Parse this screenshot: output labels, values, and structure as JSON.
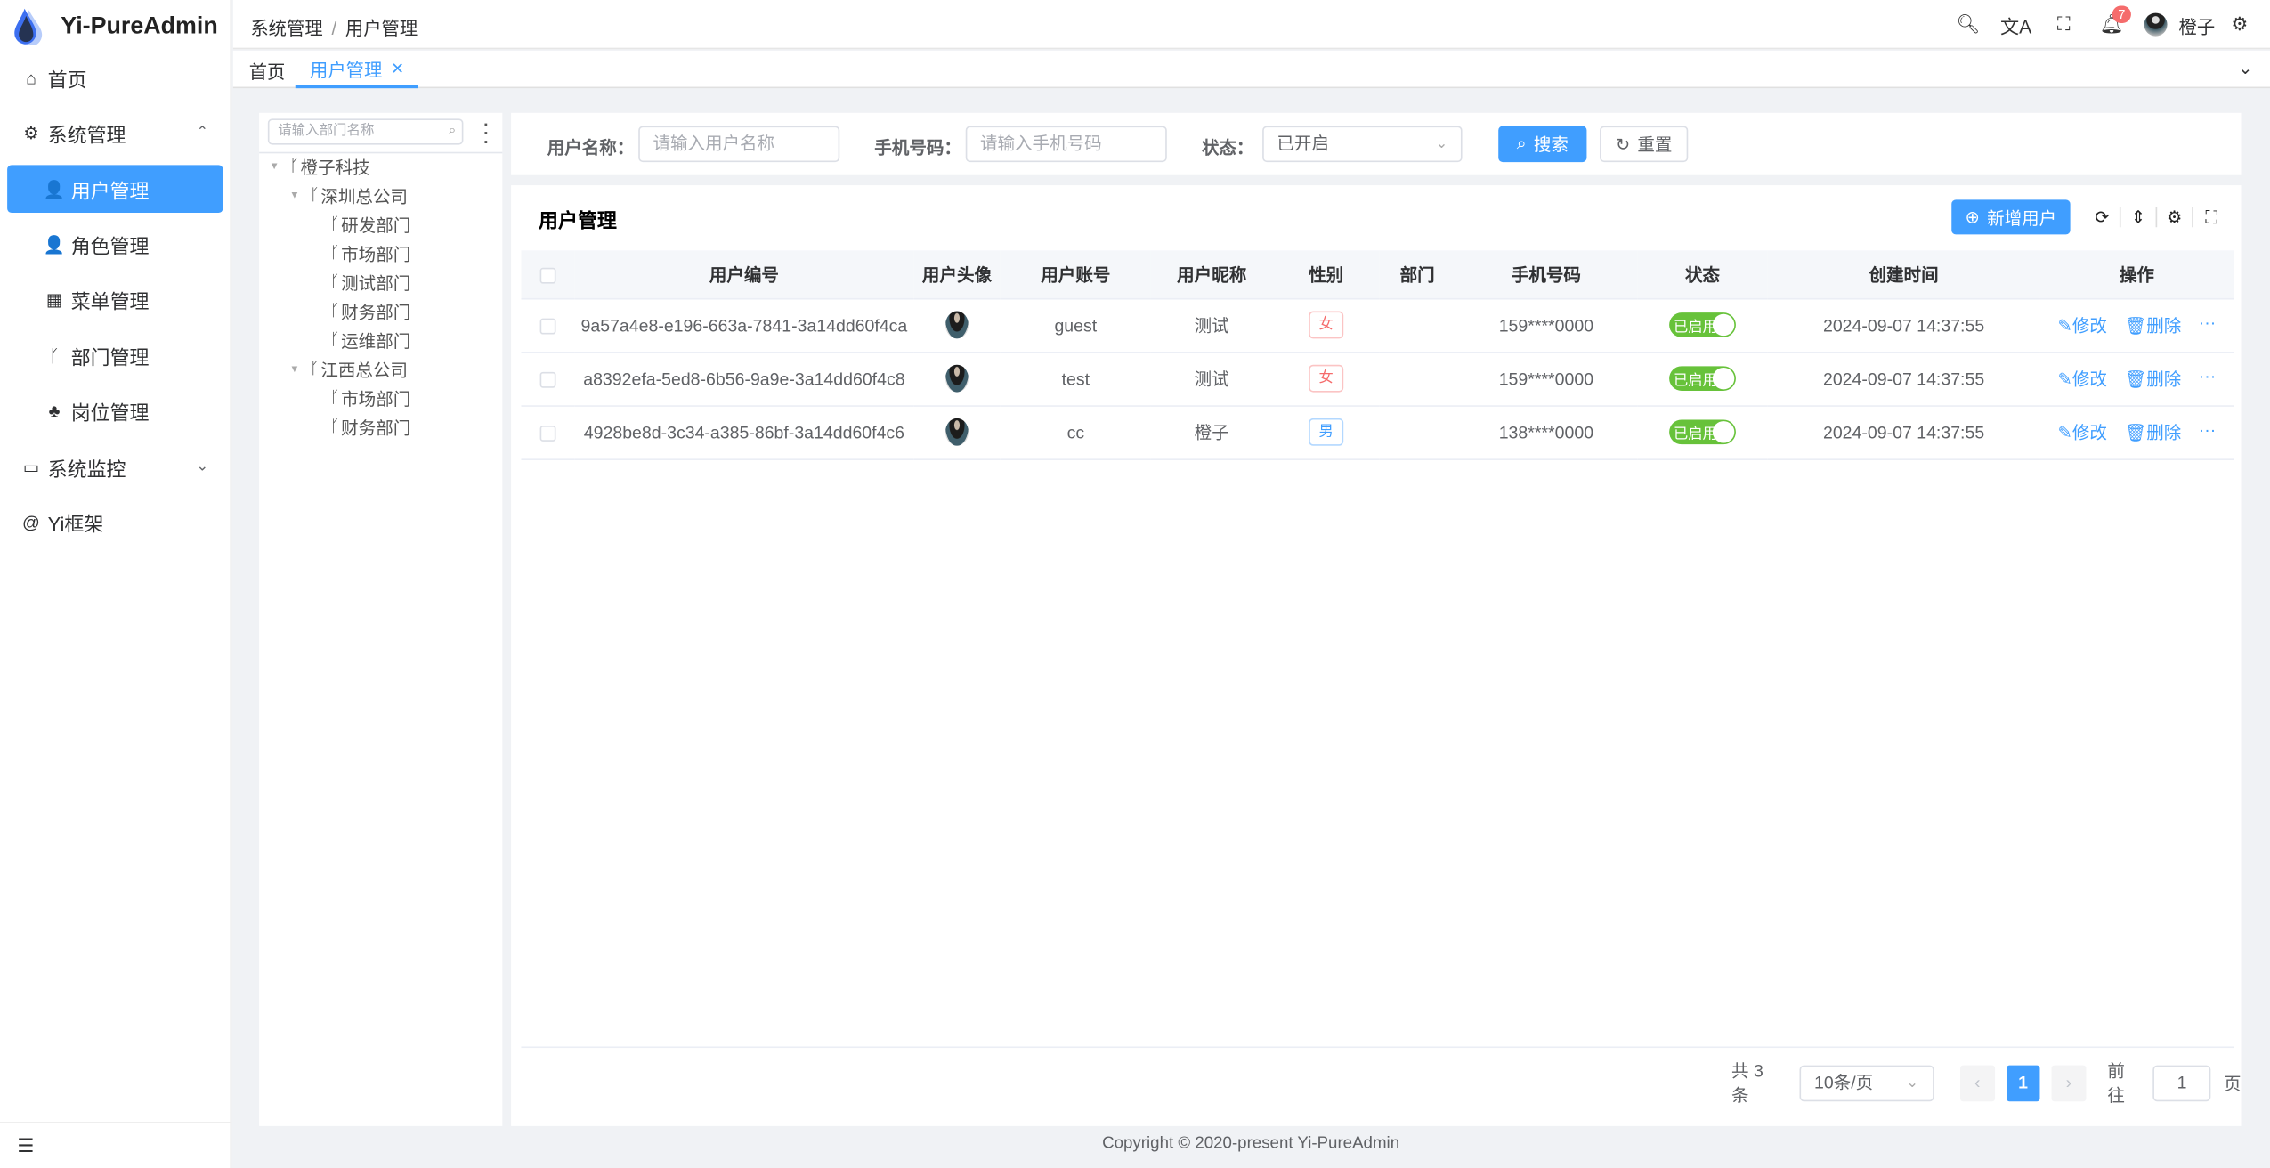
{
  "app": {
    "title": "Yi-PureAdmin",
    "collapse_icon": "collapse-icon"
  },
  "sidebar": {
    "items": [
      {
        "label": "首页",
        "icon": "home-icon",
        "glyph": "⌂",
        "level": "top",
        "top": 37
      },
      {
        "label": "系统管理",
        "icon": "gear-icon",
        "glyph": "⚙",
        "level": "top",
        "top": 75,
        "chev": "⌃"
      },
      {
        "label": "用户管理",
        "icon": "user-lock-icon",
        "glyph": "👤",
        "level": "sub",
        "top": 114,
        "active": true
      },
      {
        "label": "角色管理",
        "icon": "role-icon",
        "glyph": "👤",
        "level": "sub",
        "top": 152
      },
      {
        "label": "菜单管理",
        "icon": "grid-icon",
        "glyph": "▦",
        "level": "sub",
        "top": 190
      },
      {
        "label": "部门管理",
        "icon": "branch-icon",
        "glyph": "ᚴ",
        "level": "sub",
        "top": 229
      },
      {
        "label": "岗位管理",
        "icon": "network-icon",
        "glyph": "♣",
        "level": "sub",
        "top": 267
      },
      {
        "label": "系统监控",
        "icon": "monitor-icon",
        "glyph": "▭",
        "level": "top",
        "top": 306,
        "chev": "⌄"
      },
      {
        "label": "Yi框架",
        "icon": "at-icon",
        "glyph": "@",
        "level": "top",
        "top": 344
      }
    ]
  },
  "header": {
    "breadcrumb": [
      "系统管理",
      "用户管理"
    ],
    "notification_count": "7",
    "username": "橙子"
  },
  "tabs": [
    {
      "label": "首页"
    },
    {
      "label": "用户管理",
      "active": true
    }
  ],
  "tree": {
    "placeholder": "请输入部门名称",
    "nodes": [
      {
        "label": "橙子科技",
        "level": 0,
        "expanded": true
      },
      {
        "label": "深圳总公司",
        "level": 1,
        "expanded": true
      },
      {
        "label": "研发部门",
        "level": 2
      },
      {
        "label": "市场部门",
        "level": 2
      },
      {
        "label": "测试部门",
        "level": 2
      },
      {
        "label": "财务部门",
        "level": 2
      },
      {
        "label": "运维部门",
        "level": 2
      },
      {
        "label": "江西总公司",
        "level": 1,
        "expanded": true
      },
      {
        "label": "市场部门",
        "level": 2
      },
      {
        "label": "财务部门",
        "level": 2
      }
    ]
  },
  "search": {
    "username_label": "用户名称：",
    "username_placeholder": "请输入用户名称",
    "phone_label": "手机号码：",
    "phone_placeholder": "请输入手机号码",
    "status_label": "状态：",
    "status_value": "已开启",
    "search_btn": "搜索",
    "reset_btn": "重置"
  },
  "table": {
    "title": "用户管理",
    "add_btn": "新增用户",
    "columns": [
      "用户编号",
      "用户头像",
      "用户账号",
      "用户昵称",
      "性别",
      "部门",
      "手机号码",
      "状态",
      "创建时间",
      "操作"
    ],
    "rows": [
      {
        "id": "9a57a4e8-e196-663a-7841-3a14dd60f4ca",
        "account": "guest",
        "nickname": "测试",
        "gender": "女",
        "dept": "",
        "phone": "159****0000",
        "status": "已启用",
        "created": "2024-09-07 14:37:55"
      },
      {
        "id": "a8392efa-5ed8-6b56-9a9e-3a14dd60f4c8",
        "account": "test",
        "nickname": "测试",
        "gender": "女",
        "dept": "",
        "phone": "159****0000",
        "status": "已启用",
        "created": "2024-09-07 14:37:55"
      },
      {
        "id": "4928be8d-3c34-a385-86bf-3a14dd60f4c6",
        "account": "cc",
        "nickname": "橙子",
        "gender": "男",
        "dept": "",
        "phone": "138****0000",
        "status": "已启用",
        "created": "2024-09-07 14:37:55"
      }
    ],
    "edit_label": "修改",
    "delete_label": "删除"
  },
  "pagination": {
    "total": "共 3 条",
    "page_size": "10条/页",
    "current": "1",
    "goto_label": "前往",
    "goto_value": "1",
    "page_suffix": "页"
  },
  "footer": "Copyright © 2020-present Yi-PureAdmin",
  "colors": {
    "primary": "#409eff",
    "success": "#67c23a",
    "danger": "#f56c6c"
  }
}
